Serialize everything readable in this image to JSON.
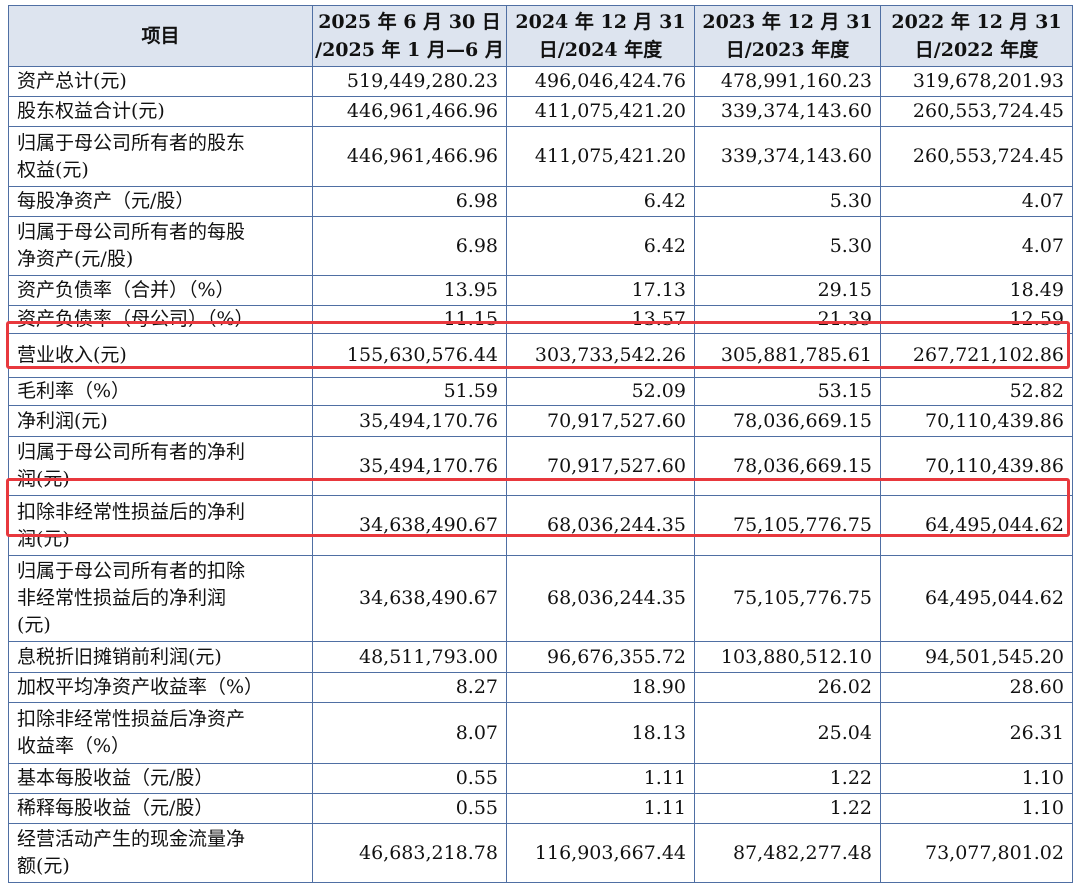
{
  "table": {
    "header": [
      "项目",
      "2025 年 6 月 30 日\n/2025 年 1 月—6 月",
      "2024 年 12 月 31\n日/2024 年度",
      "2023 年 12 月 31\n日/2023 年度",
      "2022 年 12 月 31\n日/2022 年度"
    ],
    "rows": [
      [
        "资产总计(元)",
        "519,449,280.23",
        "496,046,424.76",
        "478,991,160.23",
        "319,678,201.93"
      ],
      [
        "股东权益合计(元)",
        "446,961,466.96",
        "411,075,421.20",
        "339,374,143.60",
        "260,553,724.45"
      ],
      [
        "归属于母公司所有者的股东\n权益(元)",
        "446,961,466.96",
        "411,075,421.20",
        "339,374,143.60",
        "260,553,724.45"
      ],
      [
        "每股净资产（元/股）",
        "6.98",
        "6.42",
        "5.30",
        "4.07"
      ],
      [
        "归属于母公司所有者的每股\n净资产(元/股)",
        "6.98",
        "6.42",
        "5.30",
        "4.07"
      ],
      [
        "资产负债率（合并）（%）",
        "13.95",
        "17.13",
        "29.15",
        "18.49"
      ],
      [
        "资产负债率（母公司）（%）",
        "11.15",
        "13.57",
        "21.39",
        "12.59"
      ],
      [
        "营业收入(元)",
        "155,630,576.44",
        "303,733,542.26",
        "305,881,785.61",
        "267,721,102.86"
      ],
      [
        "毛利率（%）",
        "51.59",
        "52.09",
        "53.15",
        "52.82"
      ],
      [
        "净利润(元)",
        "35,494,170.76",
        "70,917,527.60",
        "78,036,669.15",
        "70,110,439.86"
      ],
      [
        "归属于母公司所有者的净利\n润(元)",
        "35,494,170.76",
        "70,917,527.60",
        "78,036,669.15",
        "70,110,439.86"
      ],
      [
        "扣除非经常性损益后的净利\n润(元)",
        "34,638,490.67",
        "68,036,244.35",
        "75,105,776.75",
        "64,495,044.62"
      ],
      [
        "归属于母公司所有者的扣除\n非经常性损益后的净利润\n(元)",
        "34,638,490.67",
        "68,036,244.35",
        "75,105,776.75",
        "64,495,044.62"
      ],
      [
        "息税折旧摊销前利润(元)",
        "48,511,793.00",
        "96,676,355.72",
        "103,880,512.10",
        "94,501,545.20"
      ],
      [
        "加权平均净资产收益率（%）",
        "8.27",
        "18.90",
        "26.02",
        "28.60"
      ],
      [
        "扣除非经常性损益后净资产\n收益率（%）",
        "8.07",
        "18.13",
        "25.04",
        "26.31"
      ],
      [
        "基本每股收益（元/股）",
        "0.55",
        "1.11",
        "1.22",
        "1.10"
      ],
      [
        "稀释每股收益（元/股）",
        "0.55",
        "1.11",
        "1.22",
        "1.10"
      ],
      [
        "经营活动产生的现金流量净\n额(元)",
        "46,683,218.78",
        "116,903,667.44",
        "87,482,277.48",
        "73,077,801.02"
      ]
    ]
  }
}
